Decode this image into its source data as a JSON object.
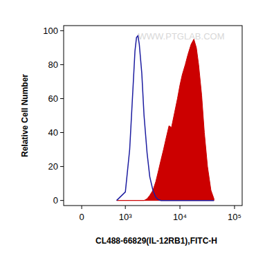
{
  "chart_data": {
    "type": "area",
    "x_label": "CL488-66829(IL-12RB1),FITC-H",
    "y_label": "Relative Cell Number",
    "annotations": [
      "WWW.PTGLAB.COM"
    ],
    "log": "x",
    "x": [
      800,
      1000,
      1200,
      1400,
      1500,
      1600,
      1700,
      1800,
      2000,
      2200,
      2500,
      2800,
      3200,
      3600,
      4000,
      4500,
      5000,
      5600,
      6300,
      7000,
      8000,
      9000,
      10000,
      11000,
      12500,
      14000,
      16000,
      18000,
      20000,
      22000,
      25000,
      28000,
      32000,
      37000,
      42000
    ],
    "series": [
      {
        "type": "area",
        "color": "#cc0000",
        "values": [
          0,
          0,
          0,
          0,
          0,
          0,
          0,
          0,
          0,
          0,
          1,
          3,
          6,
          11,
          17,
          24,
          30,
          37,
          44,
          43,
          52,
          60,
          68,
          74,
          80,
          86,
          92,
          95,
          90,
          80,
          62,
          40,
          20,
          6,
          1
        ]
      },
      {
        "type": "line",
        "color": "#1c1ca0",
        "values": [
          0,
          5,
          30,
          70,
          88,
          96,
          97,
          92,
          75,
          50,
          28,
          14,
          6,
          2,
          0.5,
          0,
          0,
          0,
          0,
          0,
          0,
          0,
          0,
          0,
          0,
          0,
          0,
          0,
          0,
          0,
          0,
          0,
          0,
          0,
          0
        ]
      }
    ],
    "xlim": [
      -413,
      138000
    ],
    "xticks": [
      0,
      {
        "value": 1000,
        "label": "10³"
      },
      {
        "value": 10000,
        "label": "10⁴"
      },
      {
        "value": 100000,
        "label": "10⁵"
      }
    ],
    "ylim": [
      -3,
      103
    ],
    "yticks": [
      0,
      20,
      40,
      60,
      80,
      100
    ],
    "grid": false
  }
}
